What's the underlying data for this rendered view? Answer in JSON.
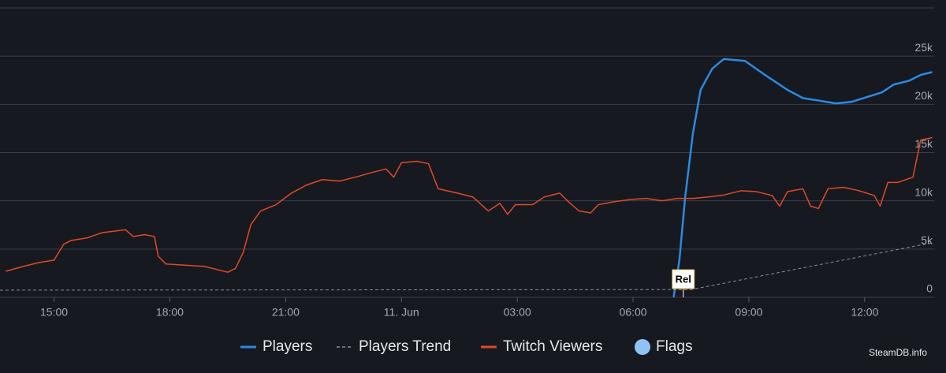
{
  "chart_data": {
    "type": "line",
    "xlim": [
      13.6,
      37.8
    ],
    "ylim": [
      0,
      30000
    ],
    "xticks": [
      {
        "value": 15,
        "label": "15:00"
      },
      {
        "value": 18,
        "label": "18:00"
      },
      {
        "value": 21,
        "label": "21:00"
      },
      {
        "value": 24,
        "label": "11. Jun"
      },
      {
        "value": 27,
        "label": "03:00"
      },
      {
        "value": 30,
        "label": "06:00"
      },
      {
        "value": 33,
        "label": "09:00"
      },
      {
        "value": 36,
        "label": "12:00"
      }
    ],
    "yticks": [
      0,
      {
        "value": 5000,
        "label": "5k"
      },
      {
        "value": 10000,
        "label": "10k"
      },
      {
        "value": 15000,
        "label": "15k"
      },
      {
        "value": 20000,
        "label": "20k"
      },
      {
        "value": 25000,
        "label": "25k"
      }
    ],
    "grid": true,
    "series": [
      {
        "name": "Players",
        "color": "#2a8be0",
        "dash": false,
        "x": [
          31.05,
          31.2,
          31.35,
          31.55,
          31.75,
          32.05,
          32.35,
          32.9,
          33.4,
          34.0,
          34.4,
          34.8,
          35.25,
          35.65,
          36.05,
          36.45,
          36.75,
          37.15,
          37.45,
          37.75
        ],
        "values": [
          0,
          3850,
          10400,
          17000,
          21500,
          23700,
          24700,
          24500,
          23100,
          21500,
          20650,
          20400,
          20100,
          20250,
          20750,
          21250,
          22050,
          22450,
          23050,
          23350
        ]
      },
      {
        "name": "Players Trend",
        "color": "#8a8d93",
        "dash": true,
        "x": [
          13.6,
          31.5,
          37.75
        ],
        "values": [
          740,
          800,
          5650
        ]
      },
      {
        "name": "Twitch Viewers",
        "color": "#e14a27",
        "dash": false,
        "x": [
          13.75,
          14.2,
          14.6,
          15.0,
          15.25,
          15.45,
          15.85,
          16.25,
          16.85,
          17.05,
          17.35,
          17.6,
          17.7,
          17.9,
          18.3,
          18.9,
          19.5,
          19.7,
          19.9,
          20.1,
          20.35,
          20.75,
          21.15,
          21.55,
          21.95,
          22.4,
          22.8,
          23.2,
          23.6,
          23.8,
          24.0,
          24.4,
          24.7,
          24.95,
          25.45,
          25.85,
          26.25,
          26.55,
          26.75,
          26.95,
          27.4,
          27.7,
          28.1,
          28.3,
          28.6,
          28.9,
          29.1,
          29.5,
          29.95,
          30.35,
          30.75,
          31.15,
          31.55,
          31.95,
          32.35,
          32.8,
          33.2,
          33.6,
          33.8,
          34.0,
          34.4,
          34.6,
          34.8,
          35.05,
          35.45,
          35.85,
          36.25,
          36.4,
          36.6,
          36.85,
          37.25,
          37.45,
          37.75
        ],
        "values": [
          2700,
          3200,
          3600,
          3850,
          5500,
          5900,
          6150,
          6700,
          7000,
          6300,
          6500,
          6300,
          4250,
          3450,
          3350,
          3200,
          2600,
          3000,
          4650,
          7550,
          8950,
          9600,
          10800,
          11650,
          12200,
          12050,
          12450,
          12900,
          13300,
          12450,
          13950,
          14100,
          13850,
          11250,
          10800,
          10400,
          8950,
          9750,
          8600,
          9600,
          9600,
          10400,
          10800,
          10000,
          8950,
          8750,
          9600,
          9900,
          10150,
          10250,
          10000,
          10250,
          10250,
          10400,
          10600,
          11050,
          10950,
          10550,
          9450,
          10950,
          11250,
          9450,
          9200,
          11250,
          11400,
          11050,
          10550,
          9450,
          11900,
          11900,
          12450,
          16300,
          16550
        ]
      }
    ],
    "flags": {
      "name": "Flags",
      "color": "#8fc3f7",
      "items": [
        {
          "x": 31.3,
          "label": "Rel"
        }
      ]
    },
    "watermark": "SteamDB.info"
  }
}
